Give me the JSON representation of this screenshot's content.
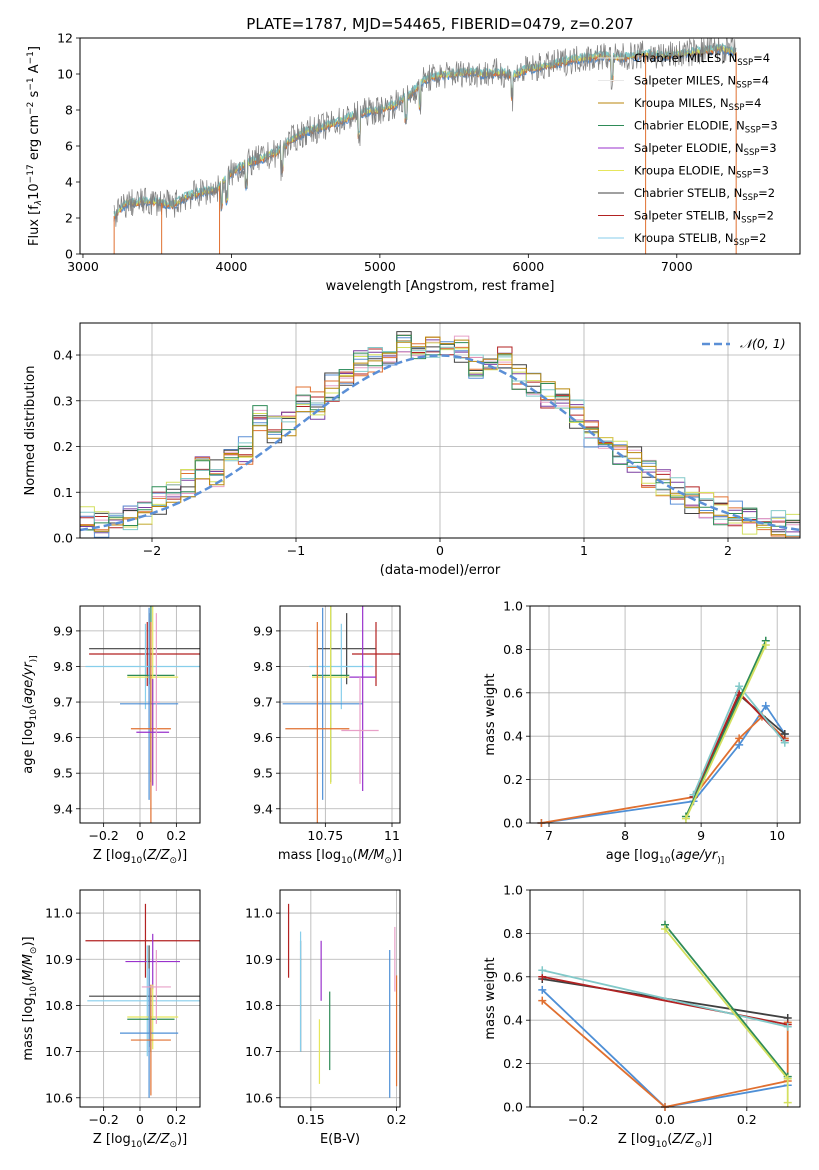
{
  "figure_title": "PLATE=1787, MJD=54465, FIBERID=0479, z=0.207",
  "legend_entries": [
    {
      "label": "Chabrier MILES, N",
      "sub": "SSP",
      "tail": "=4",
      "color": "#e8e8e8"
    },
    {
      "label": "Salpeter MILES, N",
      "sub": "SSP",
      "tail": "=4",
      "color": "#e8e8e8"
    },
    {
      "label": "Kroupa MILES, N",
      "sub": "SSP",
      "tail": "=4",
      "color": "#b8860b"
    },
    {
      "label": "Chabrier ELODIE, N",
      "sub": "SSP",
      "tail": "=3",
      "color": "#2e8b57"
    },
    {
      "label": "Salpeter ELODIE, N",
      "sub": "SSP",
      "tail": "=3",
      "color": "#9932cc"
    },
    {
      "label": "Kroupa ELODIE, N",
      "sub": "SSP",
      "tail": "=3",
      "color": "#e6e65c"
    },
    {
      "label": "Chabrier STELIB, N",
      "sub": "SSP",
      "tail": "=2",
      "color": "#404040"
    },
    {
      "label": "Salpeter STELIB, N",
      "sub": "SSP",
      "tail": "=2",
      "color": "#b22222"
    },
    {
      "label": "Kroupa STELIB, N",
      "sub": "SSP",
      "tail": "=2",
      "color": "#87ceeb"
    }
  ],
  "chart_data": [
    {
      "id": "spectrum",
      "type": "line",
      "xlabel": "wavelength [Angstrom, rest frame]",
      "ylabel": "Flux [f",
      "ylabel_parts": [
        "Flux [f",
        "λ",
        "10",
        "−17",
        " erg cm",
        "−2",
        " s",
        "−1",
        " A",
        "−1",
        "]"
      ],
      "xlim": [
        2980,
        7830
      ],
      "ylim": [
        0,
        12
      ],
      "xticks": [
        3000,
        4000,
        5000,
        6000,
        7000
      ],
      "yticks": [
        0,
        2,
        4,
        6,
        8,
        10,
        12
      ],
      "grid": false,
      "legend": "upper-right",
      "data_color": "#808080",
      "model_colors": [
        "#4e8fd6",
        "#e07030",
        "#d4e060",
        "#82c9c9"
      ],
      "x": [
        3200,
        3250,
        3300,
        3400,
        3500,
        3600,
        3700,
        3800,
        3900,
        4000,
        4100,
        4200,
        4300,
        4400,
        4500,
        4600,
        4700,
        4800,
        4900,
        5000,
        5100,
        5200,
        5300,
        5400,
        5500,
        5600,
        5700,
        5800,
        5900,
        6000,
        6100,
        6200,
        6300,
        6400,
        6500,
        6600,
        6700,
        6800,
        6900,
        7000,
        7100,
        7200,
        7300,
        7400
      ],
      "y": [
        2.0,
        2.5,
        2.8,
        2.9,
        2.9,
        2.7,
        3.2,
        3.4,
        3.6,
        4.5,
        5.0,
        5.3,
        5.6,
        6.3,
        6.8,
        7.0,
        7.3,
        7.6,
        7.9,
        8.0,
        8.3,
        8.8,
        9.7,
        9.9,
        10.0,
        10.1,
        10.0,
        10.1,
        9.9,
        10.3,
        10.4,
        10.6,
        10.8,
        10.9,
        11.0,
        10.9,
        11.0,
        11.1,
        11.0,
        11.1,
        11.2,
        11.3,
        11.4,
        11.2
      ]
    },
    {
      "id": "residuals",
      "type": "line",
      "xlabel": "(data-model)/error",
      "ylabel": "Normed distribution",
      "xlim": [
        -2.5,
        2.5
      ],
      "ylim": [
        0,
        0.47
      ],
      "xticks": [
        -2,
        -1,
        0,
        1,
        2
      ],
      "yticks": [
        0.0,
        0.1,
        0.2,
        0.3,
        0.4
      ],
      "grid": true,
      "legend": "upper-right",
      "legend_label": "𝒩(0, 1)",
      "gaussian_color": "#5b8fd6",
      "bin_centers": [
        -2.45,
        -2.35,
        -2.25,
        -2.15,
        -2.05,
        -1.95,
        -1.85,
        -1.75,
        -1.65,
        -1.55,
        -1.45,
        -1.35,
        -1.25,
        -1.15,
        -1.05,
        -0.95,
        -0.85,
        -0.75,
        -0.65,
        -0.55,
        -0.45,
        -0.35,
        -0.25,
        -0.15,
        -0.05,
        0.05,
        0.15,
        0.25,
        0.35,
        0.45,
        0.55,
        0.65,
        0.75,
        0.85,
        0.95,
        1.05,
        1.15,
        1.25,
        1.35,
        1.45,
        1.55,
        1.65,
        1.75,
        1.85,
        1.95,
        2.05,
        2.15,
        2.25,
        2.35,
        2.45
      ],
      "histogram_base": [
        0.04,
        0.03,
        0.04,
        0.05,
        0.06,
        0.08,
        0.1,
        0.12,
        0.16,
        0.14,
        0.2,
        0.19,
        0.26,
        0.24,
        0.25,
        0.3,
        0.29,
        0.33,
        0.35,
        0.38,
        0.39,
        0.41,
        0.43,
        0.41,
        0.42,
        0.4,
        0.41,
        0.37,
        0.38,
        0.39,
        0.35,
        0.33,
        0.31,
        0.3,
        0.27,
        0.23,
        0.2,
        0.19,
        0.17,
        0.14,
        0.12,
        0.1,
        0.08,
        0.07,
        0.06,
        0.05,
        0.04,
        0.04,
        0.03,
        0.02
      ],
      "series_colors": [
        "#b22222",
        "#7b3fa0",
        "#e8a0c8",
        "#5b8fd6",
        "#404040",
        "#e07030",
        "#d4e060",
        "#82c9c9",
        "#2e8b57",
        "#b8860b"
      ]
    },
    {
      "id": "age_vs_Z",
      "type": "scatter",
      "xlabel": "Z [log10(Z/Z⊙)]",
      "xlabel_parts": [
        "Z [log",
        "10",
        "(",
        "Z/Z",
        "⊙",
        ")]"
      ],
      "ylabel": "age  [log10(age/yr)]",
      "ylabel_parts": [
        "age  [log",
        "10",
        "(",
        "age/yr",
        ")]"
      ],
      "xlim": [
        -0.33,
        0.33
      ],
      "ylim": [
        9.36,
        9.97
      ],
      "xticks": [
        -0.2,
        0.0,
        0.2
      ],
      "yticks": [
        9.4,
        9.5,
        9.6,
        9.7,
        9.8,
        9.9
      ],
      "grid": true,
      "points": [
        {
          "x": 0.05,
          "y": 9.85,
          "xerr": 0.33,
          "yerr": 0.1,
          "color": "#404040"
        },
        {
          "x": 0.04,
          "y": 9.835,
          "xerr": 0.32,
          "yerr": 0.09,
          "color": "#b22222"
        },
        {
          "x": 0.03,
          "y": 9.8,
          "xerr": 0.33,
          "yerr": 0.12,
          "color": "#87ceeb"
        },
        {
          "x": 0.06,
          "y": 9.775,
          "xerr": 0.13,
          "yerr": 0.3,
          "color": "#2e8b57"
        },
        {
          "x": 0.07,
          "y": 9.77,
          "xerr": 0.14,
          "yerr": 0.3,
          "color": "#e6e65c"
        },
        {
          "x": 0.05,
          "y": 9.695,
          "xerr": 0.16,
          "yerr": 0.27,
          "color": "#4e8fd6"
        },
        {
          "x": 0.06,
          "y": 9.625,
          "xerr": 0.11,
          "yerr": 0.3,
          "color": "#e07030"
        },
        {
          "x": 0.07,
          "y": 9.615,
          "xerr": 0.09,
          "yerr": 0.15,
          "color": "#9932cc"
        },
        {
          "x": 0.09,
          "y": 9.7,
          "xerr": 0.02,
          "yerr": 0.25,
          "color": "#e8a0c8"
        }
      ]
    },
    {
      "id": "age_vs_mass",
      "type": "scatter",
      "xlabel": "mass [log10(M/M⊙)]",
      "xlabel_parts": [
        "mass [log",
        "10",
        "(",
        "M/M",
        "⊙",
        ")]"
      ],
      "xlim": [
        10.58,
        11.03
      ],
      "ylim": [
        9.36,
        9.97
      ],
      "xticks": [
        10.75,
        11.0
      ],
      "yticks": [
        9.4,
        9.5,
        9.6,
        9.7,
        9.8,
        9.9
      ],
      "grid": true,
      "points": [
        {
          "x": 10.83,
          "y": 9.85,
          "xerr": 0.11,
          "yerr": 0.1,
          "color": "#404040"
        },
        {
          "x": 10.94,
          "y": 9.835,
          "xerr": 0.09,
          "yerr": 0.09,
          "color": "#b22222"
        },
        {
          "x": 10.81,
          "y": 9.8,
          "xerr": 0.12,
          "yerr": 0.12,
          "color": "#87ceeb"
        },
        {
          "x": 10.77,
          "y": 9.775,
          "xerr": 0.07,
          "yerr": 0.3,
          "color": "#2e8b57"
        },
        {
          "x": 10.77,
          "y": 9.77,
          "xerr": 0.07,
          "yerr": 0.3,
          "color": "#e6e65c"
        },
        {
          "x": 10.74,
          "y": 9.695,
          "xerr": 0.15,
          "yerr": 0.27,
          "color": "#4e8fd6"
        },
        {
          "x": 10.72,
          "y": 9.625,
          "xerr": 0.12,
          "yerr": 0.3,
          "color": "#e07030"
        },
        {
          "x": 10.89,
          "y": 9.77,
          "xerr": 0.05,
          "yerr": 0.32,
          "color": "#9932cc"
        },
        {
          "x": 10.88,
          "y": 9.62,
          "xerr": 0.07,
          "yerr": 0.15,
          "color": "#e8a0c8"
        }
      ]
    },
    {
      "id": "massweight_vs_age",
      "type": "line",
      "xlabel": "age  [log10(age/yr)]",
      "xlabel_parts": [
        "age  [log",
        "10",
        "(",
        "age/yr",
        ")]"
      ],
      "ylabel": "mass weight",
      "xlim": [
        6.75,
        10.3
      ],
      "ylim": [
        0,
        1.0
      ],
      "xticks": [
        7,
        8,
        9,
        10
      ],
      "yticks": [
        0.0,
        0.2,
        0.4,
        0.6,
        0.8,
        1.0
      ],
      "grid": true,
      "series": [
        {
          "color": "#4e8fd6",
          "x": [
            6.9,
            8.9,
            9.5,
            9.85,
            10.1
          ],
          "y": [
            0.0,
            0.1,
            0.36,
            0.54,
            0.41
          ]
        },
        {
          "color": "#e07030",
          "x": [
            6.9,
            8.9,
            9.5,
            9.8,
            10.1
          ],
          "y": [
            0.0,
            0.12,
            0.39,
            0.49,
            0.39
          ]
        },
        {
          "color": "#404040",
          "x": [
            8.9,
            9.5,
            10.1
          ],
          "y": [
            0.12,
            0.59,
            0.41
          ]
        },
        {
          "color": "#b22222",
          "x": [
            8.9,
            9.5,
            10.1
          ],
          "y": [
            0.12,
            0.6,
            0.38
          ]
        },
        {
          "color": "#82c9c9",
          "x": [
            8.9,
            9.5,
            10.1
          ],
          "y": [
            0.13,
            0.63,
            0.37
          ]
        },
        {
          "color": "#2e8b57",
          "x": [
            8.8,
            9.85
          ],
          "y": [
            0.03,
            0.84
          ]
        },
        {
          "color": "#d4e060",
          "x": [
            8.8,
            9.85
          ],
          "y": [
            0.02,
            0.82
          ]
        }
      ]
    },
    {
      "id": "mass_vs_Z",
      "type": "scatter",
      "xlabel": "Z [log10(Z/Z⊙)]",
      "xlabel_parts": [
        "Z [log",
        "10",
        "(",
        "Z/Z",
        "⊙",
        ")]"
      ],
      "ylabel": "mass [log10(M/M⊙)]",
      "ylabel_parts": [
        "mass [log",
        "10",
        "(",
        "M/M",
        "⊙",
        ")]"
      ],
      "xlim": [
        -0.33,
        0.33
      ],
      "ylim": [
        10.58,
        11.05
      ],
      "xticks": [
        -0.2,
        0.0,
        0.2
      ],
      "yticks": [
        10.6,
        10.7,
        10.8,
        10.9,
        11.0
      ],
      "grid": true,
      "points": [
        {
          "x": 0.03,
          "y": 10.94,
          "xerr": 0.33,
          "yerr": 0.08,
          "color": "#b22222"
        },
        {
          "x": 0.07,
          "y": 10.895,
          "xerr": 0.15,
          "yerr": 0.06,
          "color": "#9932cc"
        },
        {
          "x": 0.05,
          "y": 10.82,
          "xerr": 0.33,
          "yerr": 0.11,
          "color": "#404040"
        },
        {
          "x": 0.04,
          "y": 10.81,
          "xerr": 0.33,
          "yerr": 0.12,
          "color": "#87ceeb"
        },
        {
          "x": 0.07,
          "y": 10.775,
          "xerr": 0.14,
          "yerr": 0.07,
          "color": "#e6e65c"
        },
        {
          "x": 0.06,
          "y": 10.77,
          "xerr": 0.13,
          "yerr": 0.07,
          "color": "#2e8b57"
        },
        {
          "x": 0.05,
          "y": 10.74,
          "xerr": 0.16,
          "yerr": 0.14,
          "color": "#4e8fd6"
        },
        {
          "x": 0.06,
          "y": 10.725,
          "xerr": 0.11,
          "yerr": 0.12,
          "color": "#e07030"
        },
        {
          "x": 0.09,
          "y": 10.84,
          "xerr": 0.08,
          "yerr": 0.08,
          "color": "#e8a0c8"
        }
      ]
    },
    {
      "id": "mass_vs_EBV",
      "type": "scatter",
      "xlabel": "E(B-V)",
      "xlim": [
        0.132,
        0.202
      ],
      "ylim": [
        10.58,
        11.05
      ],
      "xticks": [
        0.15,
        0.2
      ],
      "yticks": [
        10.6,
        10.7,
        10.8,
        10.9,
        11.0
      ],
      "grid": true,
      "points": [
        {
          "x": 0.137,
          "y": 10.94,
          "yerr": 0.08,
          "color": "#b22222"
        },
        {
          "x": 0.144,
          "y": 10.82,
          "yerr": 0.12,
          "color": "#404040"
        },
        {
          "x": 0.144,
          "y": 10.83,
          "yerr": 0.13,
          "color": "#87ceeb"
        },
        {
          "x": 0.155,
          "y": 10.7,
          "yerr": 0.07,
          "color": "#e6e65c"
        },
        {
          "x": 0.156,
          "y": 10.875,
          "yerr": 0.065,
          "color": "#9932cc"
        },
        {
          "x": 0.161,
          "y": 10.745,
          "yerr": 0.085,
          "color": "#2e8b57"
        },
        {
          "x": 0.196,
          "y": 10.76,
          "yerr": 0.16,
          "color": "#4e8fd6"
        },
        {
          "x": 0.2,
          "y": 10.745,
          "yerr": 0.12,
          "color": "#e07030"
        },
        {
          "x": 0.199,
          "y": 10.9,
          "yerr": 0.07,
          "color": "#e8a0c8"
        }
      ]
    },
    {
      "id": "massweight_vs_Z",
      "type": "line",
      "xlabel": "Z [log10(Z/Z⊙)]",
      "xlabel_parts": [
        "Z [log",
        "10",
        "(",
        "Z/Z",
        "⊙",
        ")]"
      ],
      "ylabel": "mass weight",
      "xlim": [
        -0.33,
        0.33
      ],
      "ylim": [
        0,
        1.0
      ],
      "xticks": [
        -0.2,
        0.0,
        0.2
      ],
      "yticks": [
        0.0,
        0.2,
        0.4,
        0.6,
        0.8,
        1.0
      ],
      "grid": true,
      "series": [
        {
          "color": "#4e8fd6",
          "x": [
            -0.3,
            0.0,
            0.3
          ],
          "y": [
            0.54,
            0.0,
            0.1
          ]
        },
        {
          "color": "#e07030",
          "x": [
            -0.3,
            0.0,
            0.3,
            0.3
          ],
          "y": [
            0.49,
            0.0,
            0.12,
            0.39
          ]
        },
        {
          "color": "#404040",
          "x": [
            -0.3,
            0.3
          ],
          "y": [
            0.59,
            0.41
          ]
        },
        {
          "color": "#b22222",
          "x": [
            -0.3,
            0.3
          ],
          "y": [
            0.6,
            0.38
          ]
        },
        {
          "color": "#82c9c9",
          "x": [
            -0.3,
            0.3
          ],
          "y": [
            0.63,
            0.37
          ]
        },
        {
          "color": "#2e8b57",
          "x": [
            0.0,
            0.3
          ],
          "y": [
            0.84,
            0.14
          ]
        },
        {
          "color": "#d4e060",
          "x": [
            0.0,
            0.3,
            0.3
          ],
          "y": [
            0.82,
            0.13,
            0.02
          ]
        }
      ]
    }
  ]
}
